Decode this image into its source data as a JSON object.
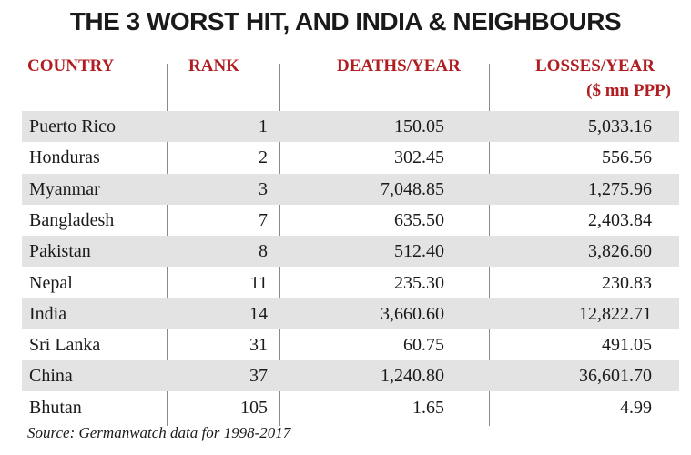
{
  "chart_data": {
    "type": "table",
    "title": "THE 3 WORST HIT, AND INDIA & NEIGHBOURS",
    "columns": [
      "COUNTRY",
      "RANK",
      "DEATHS/YEAR",
      "LOSSES/YEAR"
    ],
    "losses_unit": "($ mn PPP)",
    "rows": [
      {
        "country": "Puerto Rico",
        "rank": "1",
        "deaths": "150.05",
        "losses": "5,033.16"
      },
      {
        "country": "Honduras",
        "rank": "2",
        "deaths": "302.45",
        "losses": "556.56"
      },
      {
        "country": "Myanmar",
        "rank": "3",
        "deaths": "7,048.85",
        "losses": "1,275.96"
      },
      {
        "country": "Bangladesh",
        "rank": "7",
        "deaths": "635.50",
        "losses": "2,403.84"
      },
      {
        "country": "Pakistan",
        "rank": "8",
        "deaths": "512.40",
        "losses": "3,826.60"
      },
      {
        "country": "Nepal",
        "rank": "11",
        "deaths": "235.30",
        "losses": "230.83"
      },
      {
        "country": "India",
        "rank": "14",
        "deaths": "3,660.60",
        "losses": "12,822.71"
      },
      {
        "country": "Sri Lanka",
        "rank": "31",
        "deaths": "60.75",
        "losses": "491.05"
      },
      {
        "country": "China",
        "rank": "37",
        "deaths": "1,240.80",
        "losses": "36,601.70"
      },
      {
        "country": "Bhutan",
        "rank": "105",
        "deaths": "1.65",
        "losses": "4.99"
      }
    ],
    "source": "Source: Germanwatch data for 1998-2017",
    "header_color": "#b01e22",
    "shade_color": "#e3e3e3"
  }
}
